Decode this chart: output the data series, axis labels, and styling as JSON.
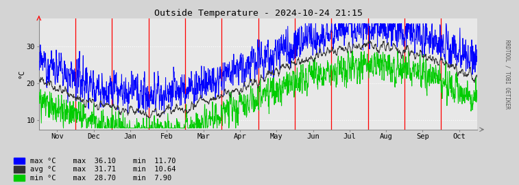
{
  "title": "Outside Temperature - 2024-10-24 21:15",
  "ylabel": "°C",
  "fig_bg_color": "#d4d4d4",
  "plot_bg_color": "#e8e8e8",
  "grid_color": "#ffffff",
  "ylim": [
    7.5,
    37.5
  ],
  "yticks": [
    10,
    20,
    30
  ],
  "x_labels": [
    "Nov",
    "Dec",
    "Jan",
    "Feb",
    "Mar",
    "Apr",
    "May",
    "Jun",
    "Jul",
    "Aug",
    "Sep",
    "Oct"
  ],
  "red_vline_fracs": [
    0.0833,
    0.1667,
    0.25,
    0.3333,
    0.4167,
    0.5,
    0.5833,
    0.6667,
    0.75,
    0.8333,
    0.9167
  ],
  "line_colors": [
    "blue",
    "#333333",
    "#00cc00"
  ],
  "legend_labels": [
    "max °C",
    "avg °C",
    "min °C"
  ],
  "legend_stats": [
    {
      "max": "36.10",
      "min": "11.70"
    },
    {
      "max": "31.71",
      "min": "10.64"
    },
    {
      "max": "28.70",
      "min": "7.90"
    }
  ],
  "right_label": "RRDTOOL / TOBI OETIKER",
  "seed": 12345,
  "n_points": 1825
}
